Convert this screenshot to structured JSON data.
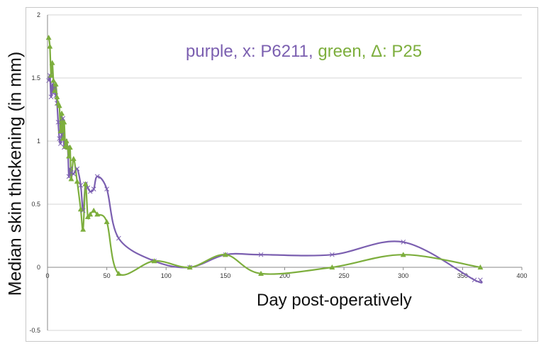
{
  "chart_data": {
    "type": "line",
    "title": "",
    "xlabel": "Day post-operatively",
    "ylabel": "Median skin thickening (in mm)",
    "annotation": {
      "purple_part": "purple, x: P6211,",
      "green_part": "green, Δ: P25"
    },
    "xlim": [
      0,
      400
    ],
    "ylim": [
      -0.5,
      2
    ],
    "x_ticks": [
      "0",
      "50",
      "100",
      "150",
      "200",
      "250",
      "300",
      "350",
      "400"
    ],
    "y_ticks": [
      "-0.5",
      "0",
      "0.5",
      "1",
      "1.5",
      "2"
    ],
    "grid": "horizontal",
    "series": [
      {
        "color": "#7b5fb0",
        "marker": "x",
        "x": [
          1,
          2,
          3,
          4,
          5,
          6,
          7,
          8,
          9,
          10,
          11,
          12,
          13,
          14,
          15,
          17,
          18,
          19,
          20,
          22,
          25,
          28,
          30,
          32,
          34,
          36,
          39,
          42,
          50,
          60,
          90,
          120,
          150,
          180,
          240,
          300,
          360,
          365
        ],
        "y": [
          1.48,
          1.52,
          1.35,
          1.45,
          1.38,
          1.42,
          1.36,
          1.3,
          1.15,
          1.02,
          0.98,
          1.05,
          1.18,
          0.95,
          1.0,
          0.95,
          0.72,
          0.78,
          0.75,
          0.74,
          0.78,
          0.65,
          0.45,
          0.66,
          0.63,
          0.6,
          0.62,
          0.72,
          0.62,
          0.23,
          0.05,
          0.0,
          0.1,
          0.1,
          0.1,
          0.2,
          -0.1,
          -0.1
        ]
      },
      {
        "color": "#7dae3d",
        "marker": "triangle",
        "x": [
          1,
          2,
          3,
          4,
          5,
          6,
          7,
          8,
          9,
          10,
          11,
          12,
          13,
          14,
          15,
          16,
          17,
          18,
          19,
          20,
          22,
          25,
          28,
          30,
          32,
          34,
          36,
          39,
          42,
          50,
          60,
          90,
          120,
          150,
          180,
          240,
          300,
          365
        ],
        "y": [
          1.82,
          1.75,
          1.52,
          1.62,
          1.48,
          1.4,
          1.45,
          1.35,
          1.3,
          1.28,
          1.08,
          1.22,
          1.02,
          1.15,
          0.96,
          1.0,
          0.95,
          0.88,
          0.95,
          0.7,
          0.86,
          0.68,
          0.46,
          0.3,
          0.66,
          0.4,
          0.42,
          0.45,
          0.42,
          0.36,
          -0.05,
          0.05,
          0.0,
          0.1,
          -0.05,
          0.0,
          0.1,
          0.0
        ]
      }
    ]
  }
}
